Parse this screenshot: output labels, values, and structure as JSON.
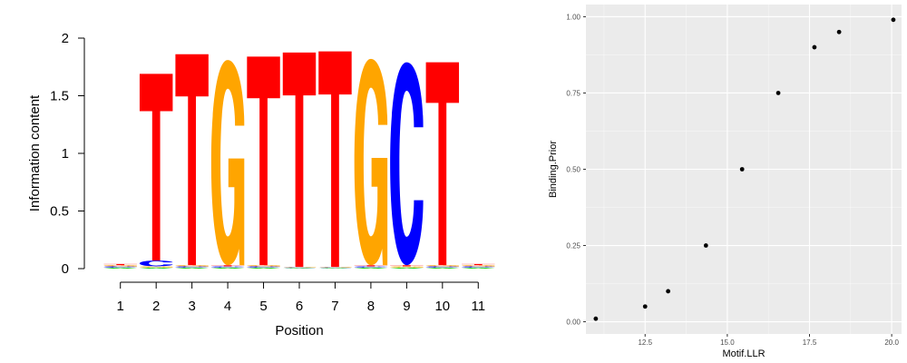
{
  "chart_data": [
    {
      "type": "sequence-logo",
      "ylabel": "Information content",
      "xlabel": "Position",
      "ylim": [
        0,
        2
      ],
      "y_ticks": [
        "0",
        "0.5",
        "1",
        "1.5",
        "2"
      ],
      "positions": [
        "1",
        "2",
        "3",
        "4",
        "5",
        "6",
        "7",
        "8",
        "9",
        "10",
        "11"
      ],
      "colors": {
        "A": "#00cc00",
        "C": "#0000ff",
        "G": "#ffa500",
        "T": "#ff0000"
      },
      "stacks": [
        [
          {
            "letter": "A",
            "value": 0.01
          },
          {
            "letter": "C",
            "value": 0.01
          },
          {
            "letter": "G",
            "value": 0.01
          },
          {
            "letter": "T",
            "value": 0.01
          }
        ],
        [
          {
            "letter": "A",
            "value": 0.01
          },
          {
            "letter": "G",
            "value": 0.01
          },
          {
            "letter": "C",
            "value": 0.05
          },
          {
            "letter": "T",
            "value": 1.62
          }
        ],
        [
          {
            "letter": "A",
            "value": 0.01
          },
          {
            "letter": "C",
            "value": 0.01
          },
          {
            "letter": "G",
            "value": 0.01
          },
          {
            "letter": "T",
            "value": 1.83
          }
        ],
        [
          {
            "letter": "A",
            "value": 0.01
          },
          {
            "letter": "C",
            "value": 0.01
          },
          {
            "letter": "T",
            "value": 0.01
          },
          {
            "letter": "G",
            "value": 1.78
          }
        ],
        [
          {
            "letter": "A",
            "value": 0.01
          },
          {
            "letter": "C",
            "value": 0.01
          },
          {
            "letter": "G",
            "value": 0.01
          },
          {
            "letter": "T",
            "value": 1.81
          }
        ],
        [
          {
            "letter": "A",
            "value": 0.005
          },
          {
            "letter": "C",
            "value": 0.005
          },
          {
            "letter": "G",
            "value": 0.005
          },
          {
            "letter": "T",
            "value": 1.86
          }
        ],
        [
          {
            "letter": "A",
            "value": 0.005
          },
          {
            "letter": "C",
            "value": 0.005
          },
          {
            "letter": "G",
            "value": 0.005
          },
          {
            "letter": "T",
            "value": 1.87
          }
        ],
        [
          {
            "letter": "A",
            "value": 0.01
          },
          {
            "letter": "C",
            "value": 0.01
          },
          {
            "letter": "T",
            "value": 0.01
          },
          {
            "letter": "G",
            "value": 1.79
          }
        ],
        [
          {
            "letter": "A",
            "value": 0.01
          },
          {
            "letter": "G",
            "value": 0.01
          },
          {
            "letter": "T",
            "value": 0.01
          },
          {
            "letter": "C",
            "value": 1.76
          }
        ],
        [
          {
            "letter": "A",
            "value": 0.01
          },
          {
            "letter": "C",
            "value": 0.01
          },
          {
            "letter": "G",
            "value": 0.01
          },
          {
            "letter": "T",
            "value": 1.76
          }
        ],
        [
          {
            "letter": "A",
            "value": 0.01
          },
          {
            "letter": "C",
            "value": 0.01
          },
          {
            "letter": "G",
            "value": 0.01
          },
          {
            "letter": "T",
            "value": 0.01
          }
        ]
      ]
    },
    {
      "type": "scatter",
      "xlabel": "Motif.LLR",
      "ylabel": "Binding.Prior",
      "xlim": [
        10.7,
        20.3
      ],
      "ylim": [
        -0.04,
        1.04
      ],
      "x_ticks": [
        12.5,
        15.0,
        17.5,
        20.0
      ],
      "x_tick_labels": [
        "12.5",
        "15.0",
        "17.5",
        "20.0"
      ],
      "y_ticks": [
        0.0,
        0.25,
        0.5,
        0.75,
        1.0
      ],
      "y_tick_labels": [
        "0.00",
        "0.25",
        "0.50",
        "0.75",
        "1.00"
      ],
      "grid": true,
      "points": [
        {
          "x": 11.0,
          "y": 0.01
        },
        {
          "x": 12.5,
          "y": 0.05
        },
        {
          "x": 13.2,
          "y": 0.1
        },
        {
          "x": 14.35,
          "y": 0.25
        },
        {
          "x": 15.45,
          "y": 0.5
        },
        {
          "x": 16.55,
          "y": 0.75
        },
        {
          "x": 17.65,
          "y": 0.9
        },
        {
          "x": 18.4,
          "y": 0.95
        },
        {
          "x": 20.05,
          "y": 0.99
        }
      ]
    }
  ]
}
